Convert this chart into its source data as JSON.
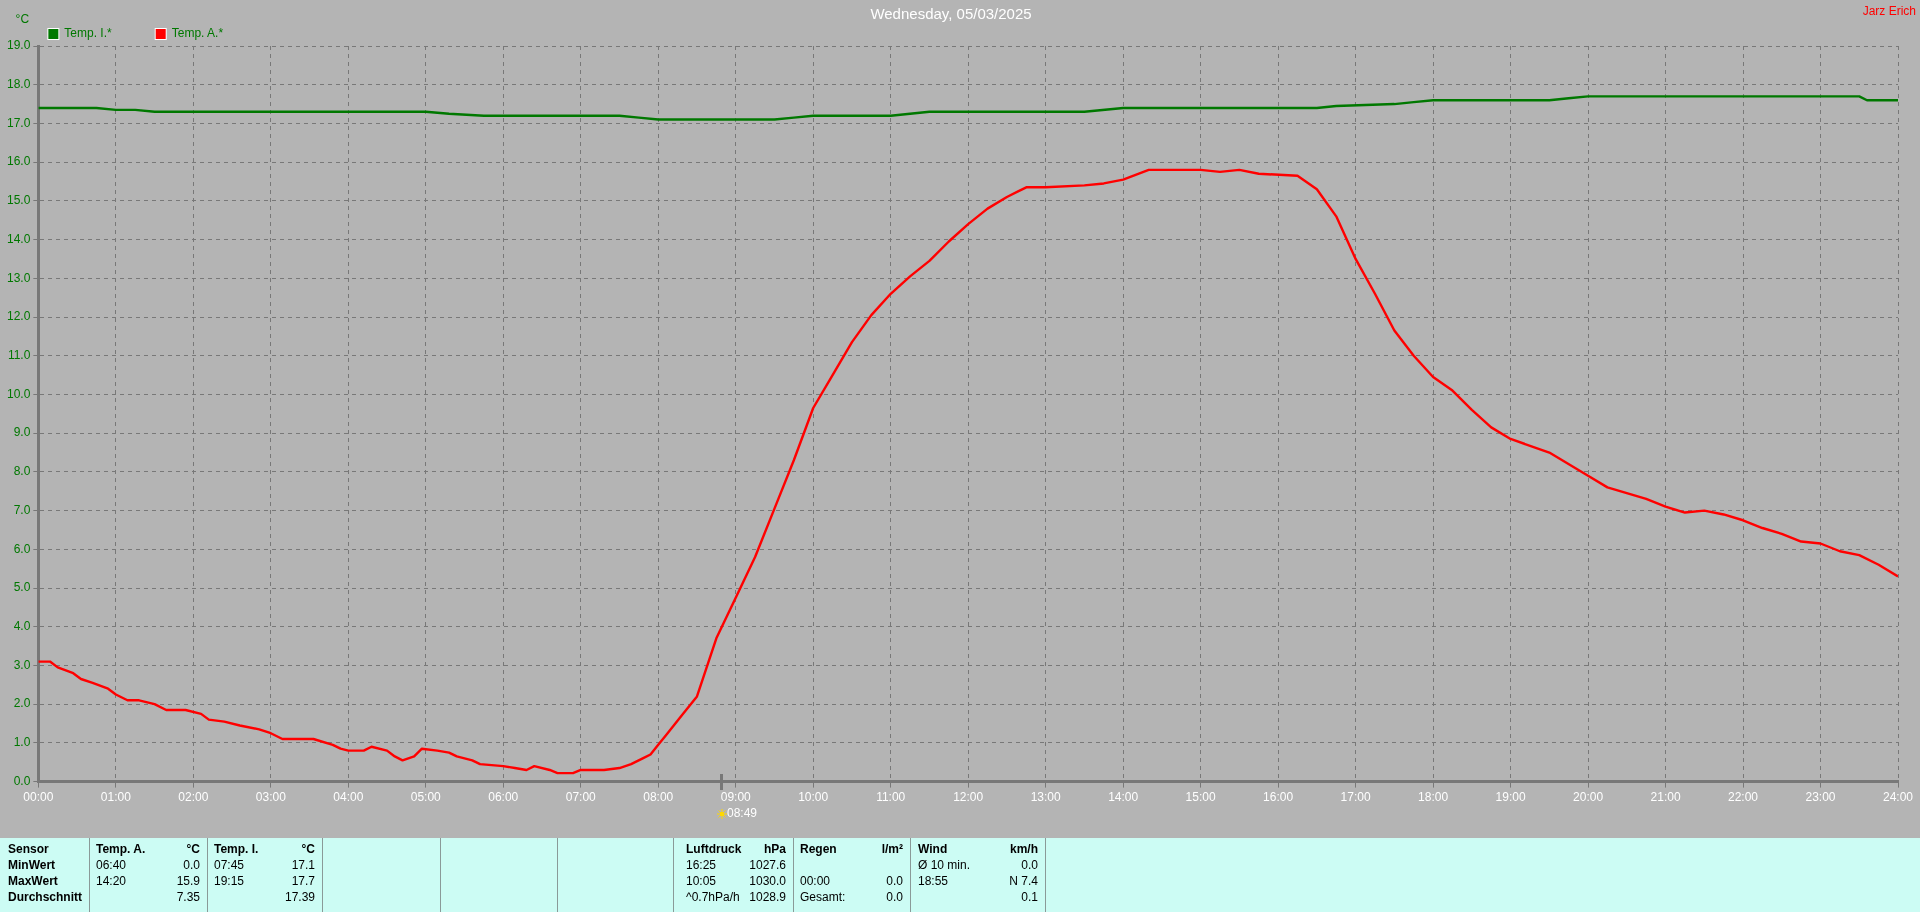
{
  "chart_data": [
    {
      "type": "line",
      "title": "Wednesday, 05/03/2025",
      "ylabel": "°C",
      "legend": "top left",
      "grid": true,
      "line_style": "dashed",
      "marker": "none",
      "xlim": [
        0,
        24
      ],
      "ylim": [
        0,
        19
      ],
      "xticks": [
        {
          "value": 0,
          "label": "00:00"
        },
        {
          "value": 1,
          "label": "01:00"
        },
        {
          "value": 2,
          "label": "02:00"
        },
        {
          "value": 3,
          "label": "03:00"
        },
        {
          "value": 4,
          "label": "04:00"
        },
        {
          "value": 5,
          "label": "05:00"
        },
        {
          "value": 6,
          "label": "06:00"
        },
        {
          "value": 7,
          "label": "07:00"
        },
        {
          "value": 8,
          "label": "08:00"
        },
        {
          "value": 9,
          "label": "09:00"
        },
        {
          "value": 10,
          "label": "10:00"
        },
        {
          "value": 11,
          "label": "11:00"
        },
        {
          "value": 12,
          "label": "12:00"
        },
        {
          "value": 13,
          "label": "13:00"
        },
        {
          "value": 14,
          "label": "14:00"
        },
        {
          "value": 15,
          "label": "15:00"
        },
        {
          "value": 16,
          "label": "16:00"
        },
        {
          "value": 17,
          "label": "17:00"
        },
        {
          "value": 18,
          "label": "18:00"
        },
        {
          "value": 19,
          "label": "19:00"
        },
        {
          "value": 20,
          "label": "20:00"
        },
        {
          "value": 21,
          "label": "21:00"
        },
        {
          "value": 22,
          "label": "22:00"
        },
        {
          "value": 23,
          "label": "23:00"
        },
        {
          "value": 24,
          "label": "24:00"
        }
      ],
      "yticks": [
        {
          "value": 0,
          "label": "0.0"
        },
        {
          "value": 1,
          "label": "1.0"
        },
        {
          "value": 2,
          "label": "2.0"
        },
        {
          "value": 3,
          "label": "3.0"
        },
        {
          "value": 4,
          "label": "4.0"
        },
        {
          "value": 5,
          "label": "5.0"
        },
        {
          "value": 6,
          "label": "6.0"
        },
        {
          "value": 7,
          "label": "7.0"
        },
        {
          "value": 8,
          "label": "8.0"
        },
        {
          "value": 9,
          "label": "9.0"
        },
        {
          "value": 10,
          "label": "10.0"
        },
        {
          "value": 11,
          "label": "11.0"
        },
        {
          "value": 12,
          "label": "12.0"
        },
        {
          "value": 13,
          "label": "13.0"
        },
        {
          "value": 14,
          "label": "14.0"
        },
        {
          "value": 15,
          "label": "15.0"
        },
        {
          "value": 16,
          "label": "16.0"
        },
        {
          "value": 17,
          "label": "17.0"
        },
        {
          "value": 18,
          "label": "18.0"
        },
        {
          "value": 19,
          "label": "19.0"
        }
      ],
      "annotations": [
        "Jarz Erich",
        "08:49"
      ],
      "series": [
        {
          "name": "Temp. I.*",
          "color": "#007800",
          "line_style": "solid",
          "x": [
            0,
            0.75,
            1,
            1.25,
            1.5,
            5,
            5.3,
            5.75,
            7.5,
            7.75,
            8,
            9.5,
            9.75,
            10,
            11,
            11.5,
            13.5,
            14,
            16.5,
            16.75,
            17.5,
            17.75,
            18,
            19.5,
            19.75,
            20,
            23.5,
            23.6,
            24
          ],
          "values": [
            17.4,
            17.4,
            17.35,
            17.35,
            17.3,
            17.3,
            17.25,
            17.2,
            17.2,
            17.15,
            17.1,
            17.1,
            17.15,
            17.2,
            17.2,
            17.3,
            17.3,
            17.4,
            17.4,
            17.45,
            17.5,
            17.55,
            17.6,
            17.6,
            17.65,
            17.7,
            17.7,
            17.6,
            17.6
          ]
        },
        {
          "name": "Temp. A.*",
          "color": "#ff0000",
          "line_style": "solid",
          "x": [
            0,
            0.15,
            0.25,
            0.45,
            0.55,
            0.7,
            0.9,
            1,
            1.15,
            1.3,
            1.5,
            1.65,
            1.9,
            2.1,
            2.2,
            2.4,
            2.6,
            2.85,
            3,
            3.15,
            3.55,
            3.8,
            3.9,
            4,
            4.2,
            4.3,
            4.5,
            4.6,
            4.7,
            4.85,
            4.95,
            5.15,
            5.3,
            5.4,
            5.6,
            5.7,
            6,
            6.15,
            6.3,
            6.4,
            6.6,
            6.7,
            6.9,
            7,
            7.3,
            7.5,
            7.65,
            7.8,
            7.9,
            8,
            8.1,
            8.3,
            8.5,
            8.75,
            9,
            9.25,
            9.5,
            9.75,
            10,
            10.25,
            10.5,
            10.75,
            11,
            11.25,
            11.5,
            11.75,
            12,
            12.25,
            12.5,
            12.75,
            13,
            13.5,
            13.75,
            14,
            14.33,
            15,
            15.25,
            15.5,
            15.75,
            16.25,
            16.5,
            16.75,
            17,
            17.25,
            17.5,
            17.75,
            18,
            18.25,
            18.5,
            18.75,
            19,
            19.5,
            20,
            20.25,
            20.5,
            20.75,
            21,
            21.25,
            21.5,
            21.75,
            22,
            22.25,
            22.5,
            22.75,
            23,
            23.25,
            23.5,
            23.75,
            24
          ],
          "values": [
            3.1,
            3.1,
            2.95,
            2.8,
            2.65,
            2.55,
            2.4,
            2.25,
            2.1,
            2.1,
            2,
            1.85,
            1.85,
            1.75,
            1.6,
            1.55,
            1.45,
            1.35,
            1.25,
            1.1,
            1.1,
            0.95,
            0.85,
            0.8,
            0.8,
            0.9,
            0.8,
            0.65,
            0.55,
            0.65,
            0.85,
            0.8,
            0.75,
            0.65,
            0.55,
            0.45,
            0.4,
            0.35,
            0.3,
            0.4,
            0.3,
            0.22,
            0.22,
            0.3,
            0.3,
            0.35,
            0.45,
            0.6,
            0.7,
            0.95,
            1.2,
            1.7,
            2.2,
            3.7,
            4.75,
            5.8,
            7.05,
            8.3,
            9.65,
            10.5,
            11.35,
            12.05,
            12.6,
            13.05,
            13.45,
            13.95,
            14.4,
            14.8,
            15.1,
            15.35,
            15.35,
            15.4,
            15.45,
            15.55,
            15.8,
            15.8,
            15.75,
            15.8,
            15.7,
            15.65,
            15.3,
            14.6,
            13.5,
            12.6,
            11.65,
            11,
            10.45,
            10.1,
            9.6,
            9.15,
            8.85,
            8.5,
            7.9,
            7.6,
            7.45,
            7.3,
            7.1,
            6.95,
            7,
            6.9,
            6.75,
            6.55,
            6.4,
            6.2,
            6.15,
            5.95,
            5.85,
            5.6,
            5.3
          ]
        }
      ]
    },
    {
      "type": "other",
      "annotations": [
        "Sensor\nMinWert\nMaxWert\nDurchschnitt",
        "Temp. A.\n06:40\n14:20\n",
        "°C\n0.0\n15.9\n7.35",
        "Temp. I.\n07:45\n19:15\n",
        "°C\n17.1\n17.7\n17.39",
        "Luftdruck\n16:25\n10:05\n^0.7hPa/h",
        "hPa\n1027.6\n1030.0\n1028.9",
        "Regen\n\n00:00\nGesamt:",
        "l/m²\n\n0.0\n0.0",
        "Wind\nØ 10 min.\n18:55\n",
        "km/h\n0.0\nN 7.4\n0.1"
      ]
    }
  ]
}
